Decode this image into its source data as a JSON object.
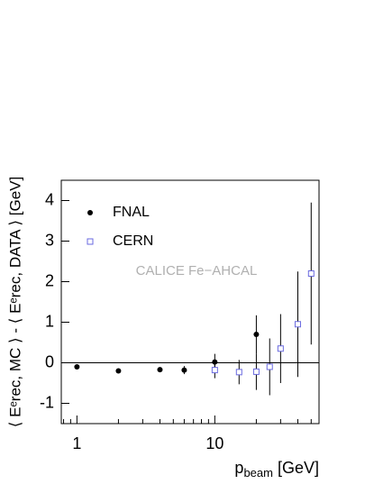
{
  "chart_data": {
    "type": "scatter",
    "xlabel": {
      "main": "p",
      "sub": "beam",
      "unit": "[GeV]"
    },
    "ylabel": "⟨ Eᵉrec, MC ⟩ - ⟨ Eᵉrec, DATA ⟩ [GeV]",
    "annotation": "CALICE Fe−AHCAL",
    "log_x": true,
    "xlim": [
      0.77,
      57
    ],
    "xticks": [
      1,
      10
    ],
    "xminorticks": [
      0.8,
      0.9,
      2,
      3,
      4,
      5,
      6,
      7,
      8,
      9,
      20,
      30,
      40,
      50
    ],
    "ylim": [
      -1.5,
      4.5
    ],
    "yticks": [
      -1,
      0,
      1,
      2,
      3,
      4
    ],
    "reference_line": 0,
    "legend": "upper left",
    "series": [
      {
        "name": "FNAL",
        "color": "#000000",
        "marker": "circle",
        "x": [
          1,
          2,
          4,
          6,
          10,
          20
        ],
        "values": [
          -0.1,
          -0.2,
          -0.17,
          -0.18,
          0.02,
          0.7
        ],
        "errors": [
          0.03,
          0.03,
          0.04,
          0.1,
          0.2,
          0.47
        ]
      },
      {
        "name": "CERN",
        "color": "#6a6ae0",
        "marker": "open-square",
        "x": [
          10,
          15,
          20,
          25,
          30,
          40,
          50
        ],
        "values": [
          -0.18,
          -0.23,
          -0.22,
          -0.1,
          0.35,
          0.95,
          2.2
        ],
        "errors": [
          0.2,
          0.3,
          0.45,
          0.7,
          0.85,
          1.3,
          1.75
        ]
      }
    ]
  }
}
